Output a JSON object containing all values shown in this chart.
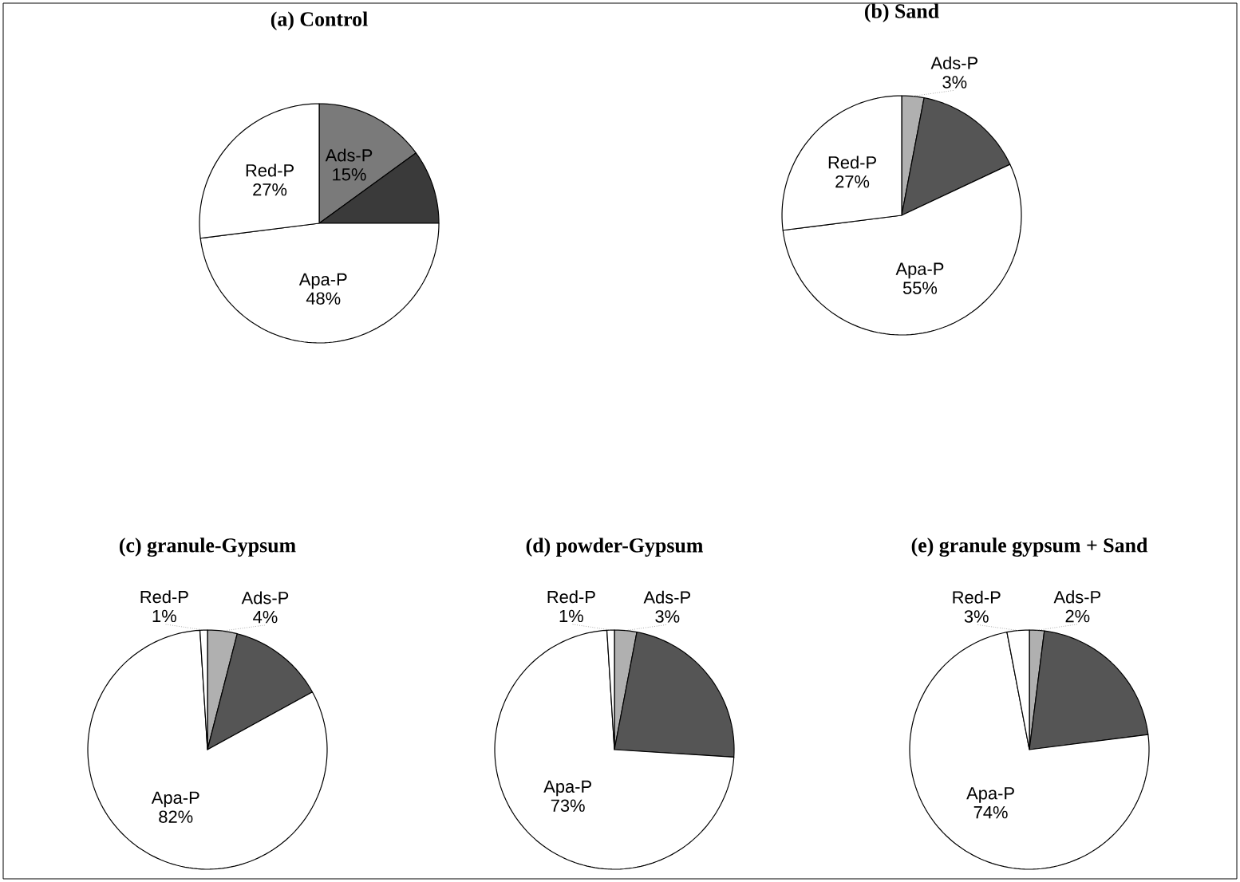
{
  "chart_data": [
    {
      "type": "pie",
      "title": "(a) Control",
      "categories": [
        "Ads-P",
        null,
        "Apa-P",
        "Red-P"
      ],
      "values": [
        15,
        10,
        48,
        27
      ],
      "colors": [
        "#7a7a7a",
        "#3a3a3a",
        "#ffffff",
        "#ffffff"
      ],
      "value_labels": [
        "15%",
        null,
        "48%",
        "27%"
      ]
    },
    {
      "type": "pie",
      "title": "(b) Sand",
      "categories": [
        "Ads-P",
        null,
        "Apa-P",
        "Red-P"
      ],
      "values": [
        3,
        15,
        55,
        27
      ],
      "colors": [
        "#b0b0b0",
        "#555555",
        "#ffffff",
        "#ffffff"
      ],
      "value_labels": [
        "3%",
        null,
        "55%",
        "27%"
      ]
    },
    {
      "type": "pie",
      "title": "(c) granule-Gypsum",
      "categories": [
        "Ads-P",
        null,
        "Apa-P",
        "Red-P"
      ],
      "values": [
        4,
        13,
        82,
        1
      ],
      "colors": [
        "#b0b0b0",
        "#555555",
        "#ffffff",
        "#ffffff"
      ],
      "value_labels": [
        "4%",
        null,
        "82%",
        "1%"
      ]
    },
    {
      "type": "pie",
      "title": "(d) powder-Gypsum",
      "categories": [
        "Ads-P",
        null,
        "Apa-P",
        "Red-P"
      ],
      "values": [
        3,
        23,
        73,
        1
      ],
      "colors": [
        "#b0b0b0",
        "#555555",
        "#ffffff",
        "#ffffff"
      ],
      "value_labels": [
        "3%",
        null,
        "73%",
        "1%"
      ]
    },
    {
      "type": "pie",
      "title": "(e) granule gypsum + Sand",
      "categories": [
        "Ads-P",
        null,
        "Apa-P",
        "Red-P"
      ],
      "values": [
        2,
        21,
        74,
        3
      ],
      "colors": [
        "#b0b0b0",
        "#555555",
        "#ffffff",
        "#ffffff"
      ],
      "value_labels": [
        "2%",
        null,
        "74%",
        "3%"
      ]
    }
  ]
}
